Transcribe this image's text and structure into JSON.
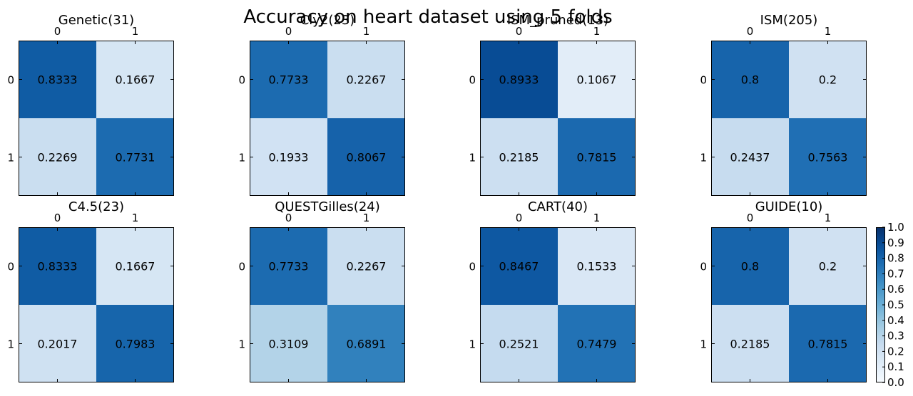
{
  "figure": {
    "title": "Accuracy on heart dataset using 5 folds"
  },
  "colorbar": {
    "range": [
      0.0,
      1.0
    ],
    "ticks": [
      "0.0",
      "0.1",
      "0.2",
      "0.3",
      "0.4",
      "0.5",
      "0.6",
      "0.7",
      "0.8",
      "0.9",
      "1.0"
    ]
  },
  "chart_data": [
    {
      "type": "heatmap",
      "title": "Genetic(31)",
      "x_ticks": [
        "0",
        "1"
      ],
      "y_ticks": [
        "0",
        "1"
      ],
      "values": [
        [
          0.8333,
          0.1667
        ],
        [
          0.2269,
          0.7731
        ]
      ]
    },
    {
      "type": "heatmap",
      "title": "Cly2(23)",
      "x_ticks": [
        "0",
        "1"
      ],
      "y_ticks": [
        "0",
        "1"
      ],
      "values": [
        [
          0.7733,
          0.2267
        ],
        [
          0.1933,
          0.8067
        ]
      ]
    },
    {
      "type": "heatmap",
      "title": "ISM_pruned(13)",
      "x_ticks": [
        "0",
        "1"
      ],
      "y_ticks": [
        "0",
        "1"
      ],
      "values": [
        [
          0.8933,
          0.1067
        ],
        [
          0.2185,
          0.7815
        ]
      ]
    },
    {
      "type": "heatmap",
      "title": "ISM(205)",
      "x_ticks": [
        "0",
        "1"
      ],
      "y_ticks": [
        "0",
        "1"
      ],
      "values": [
        [
          0.8,
          0.2
        ],
        [
          0.2437,
          0.7563
        ]
      ]
    },
    {
      "type": "heatmap",
      "title": "C4.5(23)",
      "x_ticks": [
        "0",
        "1"
      ],
      "y_ticks": [
        "0",
        "1"
      ],
      "values": [
        [
          0.8333,
          0.1667
        ],
        [
          0.2017,
          0.7983
        ]
      ]
    },
    {
      "type": "heatmap",
      "title": "QUESTGilles(24)",
      "x_ticks": [
        "0",
        "1"
      ],
      "y_ticks": [
        "0",
        "1"
      ],
      "values": [
        [
          0.7733,
          0.2267
        ],
        [
          0.3109,
          0.6891
        ]
      ]
    },
    {
      "type": "heatmap",
      "title": "CART(40)",
      "x_ticks": [
        "0",
        "1"
      ],
      "y_ticks": [
        "0",
        "1"
      ],
      "values": [
        [
          0.8467,
          0.1533
        ],
        [
          0.2521,
          0.7479
        ]
      ]
    },
    {
      "type": "heatmap",
      "title": "GUIDE(10)",
      "x_ticks": [
        "0",
        "1"
      ],
      "y_ticks": [
        "0",
        "1"
      ],
      "values": [
        [
          0.8,
          0.2
        ],
        [
          0.2185,
          0.7815
        ]
      ]
    }
  ]
}
